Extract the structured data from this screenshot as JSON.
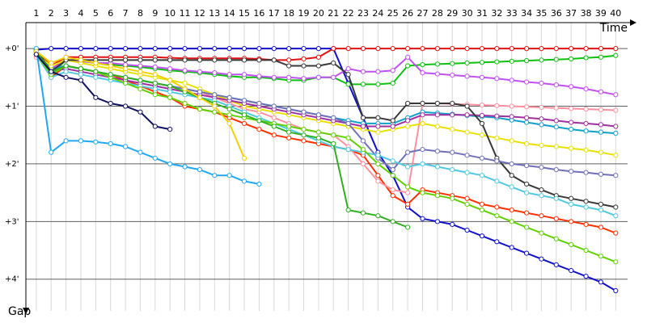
{
  "chart_data": {
    "type": "line",
    "x_label": "Time",
    "y_label": "Gap",
    "x": [
      1,
      2,
      3,
      4,
      5,
      6,
      7,
      8,
      9,
      10,
      11,
      12,
      13,
      14,
      15,
      16,
      17,
      18,
      19,
      20,
      21,
      22,
      23,
      24,
      25,
      26,
      27,
      28,
      29,
      30,
      31,
      32,
      33,
      34,
      35,
      36,
      37,
      38,
      39,
      40
    ],
    "xlim": [
      0.3,
      40.8
    ],
    "ylim": [
      -0.45,
      4.55
    ],
    "y_inverted": true,
    "yticks": [
      {
        "value": 0,
        "label": "+0'"
      },
      {
        "value": 1,
        "label": "+1'"
      },
      {
        "value": 2,
        "label": "+2'"
      },
      {
        "value": 3,
        "label": "+3'"
      },
      {
        "value": 4,
        "label": "+4'"
      }
    ],
    "grid": true,
    "series": [
      {
        "color": "#1010c8",
        "values": [
          0.02,
          0,
          0,
          0,
          0,
          0,
          0,
          0,
          0,
          0,
          0,
          0,
          0,
          0,
          0,
          0,
          0,
          0,
          0,
          0,
          0,
          0.6,
          1.2,
          1.8,
          2.2,
          2.75,
          2.95,
          3.0,
          3.05,
          3.15,
          3.25,
          3.35,
          3.45,
          3.55,
          3.65,
          3.75,
          3.85,
          3.95,
          4.05,
          4.2
        ]
      },
      {
        "color": "#e01010",
        "values": [
          0.05,
          0.3,
          0.15,
          0.15,
          0.15,
          0.15,
          0.15,
          0.15,
          0.15,
          0.16,
          0.17,
          0.17,
          0.17,
          0.17,
          0.17,
          0.18,
          0.2,
          0.2,
          0.18,
          0.15,
          0,
          0,
          0,
          0,
          0,
          0,
          0,
          0,
          0,
          0,
          0,
          0,
          0,
          0,
          0,
          0,
          0,
          0,
          0,
          0
        ]
      },
      {
        "color": "#10c010",
        "values": [
          0.05,
          0.45,
          0.2,
          0.22,
          0.25,
          0.28,
          0.3,
          0.32,
          0.35,
          0.38,
          0.4,
          0.42,
          0.45,
          0.48,
          0.5,
          0.5,
          0.52,
          0.55,
          0.55,
          0.5,
          0.5,
          0.62,
          0.62,
          0.62,
          0.6,
          0.3,
          0.28,
          0.27,
          0.26,
          0.25,
          0.24,
          0.23,
          0.22,
          0.21,
          0.2,
          0.19,
          0.18,
          0.16,
          0.15,
          0.12
        ]
      },
      {
        "color": "#ff3000",
        "values": [
          0.1,
          0.5,
          0.3,
          0.35,
          0.4,
          0.45,
          0.55,
          0.65,
          0.75,
          0.85,
          1.0,
          1.05,
          1.1,
          1.2,
          1.3,
          1.4,
          1.5,
          1.55,
          1.6,
          1.65,
          1.7,
          1.75,
          1.85,
          2.2,
          2.55,
          2.7,
          2.45,
          2.5,
          2.55,
          2.6,
          2.7,
          2.75,
          2.8,
          2.85,
          2.9,
          2.95,
          3.0,
          3.05,
          3.1,
          3.2
        ]
      },
      {
        "color": "#c050f0",
        "values": [
          0.1,
          0.35,
          0.2,
          0.22,
          0.25,
          0.25,
          0.28,
          0.3,
          0.32,
          0.35,
          0.38,
          0.4,
          0.42,
          0.45,
          0.45,
          0.48,
          0.5,
          0.5,
          0.52,
          0.5,
          0.5,
          0.35,
          0.4,
          0.4,
          0.38,
          0.15,
          0.42,
          0.44,
          0.46,
          0.48,
          0.5,
          0.52,
          0.55,
          0.58,
          0.6,
          0.63,
          0.66,
          0.7,
          0.75,
          0.8
        ]
      },
      {
        "color": "#ff90a0",
        "values": [
          0.15,
          0.4,
          0.3,
          0.35,
          0.4,
          0.45,
          0.5,
          0.55,
          0.6,
          0.65,
          0.7,
          0.75,
          0.85,
          0.95,
          1.05,
          1.1,
          1.2,
          1.3,
          1.4,
          1.45,
          1.5,
          1.7,
          2.0,
          2.3,
          2.45,
          2.5,
          0.95,
          0.95,
          0.96,
          0.97,
          0.98,
          0.99,
          1.0,
          1.01,
          1.02,
          1.03,
          1.04,
          1.05,
          1.06,
          1.07
        ]
      },
      {
        "color": "#10a0c8",
        "values": [
          0.05,
          0.35,
          0.3,
          0.35,
          0.4,
          0.45,
          0.5,
          0.55,
          0.6,
          0.65,
          0.7,
          0.75,
          0.8,
          0.85,
          0.9,
          0.95,
          1.0,
          1.05,
          1.1,
          1.15,
          1.2,
          1.25,
          1.3,
          1.3,
          1.3,
          1.2,
          1.1,
          1.12,
          1.14,
          1.16,
          1.18,
          1.2,
          1.24,
          1.28,
          1.32,
          1.36,
          1.4,
          1.43,
          1.45,
          1.47
        ]
      },
      {
        "color": "#e8e000",
        "values": [
          0.1,
          0.3,
          0.2,
          0.25,
          0.3,
          0.35,
          0.4,
          0.45,
          0.5,
          0.55,
          0.6,
          0.7,
          0.8,
          0.9,
          1.0,
          1.05,
          1.1,
          1.15,
          1.2,
          1.25,
          1.3,
          1.35,
          1.4,
          1.45,
          1.4,
          1.35,
          1.3,
          1.35,
          1.4,
          1.45,
          1.5,
          1.55,
          1.6,
          1.65,
          1.68,
          1.7,
          1.73,
          1.76,
          1.8,
          1.85
        ]
      },
      {
        "color": "#a030a0",
        "values": [
          0.1,
          0.4,
          0.35,
          0.4,
          0.45,
          0.5,
          0.55,
          0.6,
          0.65,
          0.7,
          0.75,
          0.8,
          0.85,
          0.9,
          0.95,
          1.0,
          1.05,
          1.1,
          1.15,
          1.2,
          1.25,
          1.3,
          1.35,
          1.35,
          1.35,
          1.25,
          1.15,
          1.15,
          1.15,
          1.15,
          1.16,
          1.17,
          1.18,
          1.2,
          1.22,
          1.25,
          1.28,
          1.3,
          1.32,
          1.35
        ]
      },
      {
        "color": "#383838",
        "values": [
          0.02,
          0.4,
          0.2,
          0.2,
          0.2,
          0.2,
          0.2,
          0.2,
          0.2,
          0.2,
          0.2,
          0.2,
          0.2,
          0.2,
          0.2,
          0.2,
          0.2,
          0.3,
          0.3,
          0.3,
          0.25,
          0.45,
          1.2,
          1.2,
          1.25,
          0.95,
          0.95,
          0.95,
          0.95,
          1.0,
          1.3,
          1.9,
          2.2,
          2.35,
          2.45,
          2.55,
          2.6,
          2.65,
          2.7,
          2.75
        ]
      },
      {
        "color": "#7070b8",
        "values": [
          0.1,
          0.45,
          0.3,
          0.35,
          0.4,
          0.45,
          0.5,
          0.55,
          0.6,
          0.65,
          0.7,
          0.75,
          0.8,
          0.85,
          0.9,
          0.95,
          1.0,
          1.05,
          1.1,
          1.15,
          1.2,
          1.3,
          1.6,
          1.9,
          2.1,
          1.8,
          1.75,
          1.78,
          1.8,
          1.85,
          1.9,
          1.95,
          2.0,
          2.03,
          2.06,
          2.1,
          2.13,
          2.15,
          2.18,
          2.2
        ]
      },
      {
        "color": "#50c8e0",
        "values": [
          0.1,
          0.5,
          0.4,
          0.45,
          0.5,
          0.55,
          0.6,
          0.65,
          0.7,
          0.75,
          0.8,
          0.85,
          0.9,
          1.0,
          1.1,
          1.2,
          1.3,
          1.4,
          1.5,
          1.6,
          1.7,
          1.75,
          1.8,
          1.85,
          1.95,
          2.05,
          2.0,
          2.05,
          2.1,
          2.15,
          2.2,
          2.3,
          2.4,
          2.5,
          2.55,
          2.6,
          2.7,
          2.75,
          2.8,
          2.9
        ]
      },
      {
        "color": "#60d000",
        "values": [
          0.1,
          0.45,
          0.3,
          0.35,
          0.4,
          0.5,
          0.6,
          0.7,
          0.8,
          0.85,
          0.95,
          1.05,
          1.1,
          1.15,
          1.2,
          1.25,
          1.3,
          1.35,
          1.4,
          1.45,
          1.5,
          1.55,
          1.75,
          2.0,
          2.2,
          2.4,
          2.5,
          2.55,
          2.6,
          2.7,
          2.8,
          2.9,
          3.0,
          3.1,
          3.2,
          3.3,
          3.4,
          3.5,
          3.6,
          3.7
        ]
      },
      {
        "color": "#30b020",
        "values": [
          0.05,
          0.4,
          0.3,
          0.35,
          0.4,
          0.45,
          0.5,
          0.55,
          0.6,
          0.65,
          0.75,
          0.85,
          0.95,
          1.05,
          1.15,
          1.25,
          1.35,
          1.45,
          1.5,
          1.55,
          1.65,
          2.8,
          2.85,
          2.9,
          3.0,
          3.1,
          null,
          null,
          null,
          null,
          null,
          null,
          null,
          null,
          null,
          null,
          null,
          null,
          null,
          null
        ]
      },
      {
        "color": "#20a8f0",
        "values": [
          0.0,
          1.8,
          1.6,
          1.6,
          1.62,
          1.65,
          1.7,
          1.8,
          1.9,
          2.0,
          2.05,
          2.1,
          2.2,
          2.2,
          2.3,
          2.35,
          null,
          null,
          null,
          null,
          null,
          null,
          null,
          null,
          null,
          null,
          null,
          null,
          null,
          null,
          null,
          null,
          null,
          null,
          null,
          null,
          null,
          null,
          null,
          null
        ]
      },
      {
        "color": "#f0d000",
        "values": [
          0.05,
          0.25,
          0.15,
          0.2,
          0.25,
          0.3,
          0.35,
          0.4,
          0.45,
          0.55,
          0.7,
          0.85,
          1.0,
          1.3,
          1.9,
          null,
          null,
          null,
          null,
          null,
          null,
          null,
          null,
          null,
          null,
          null,
          null,
          null,
          null,
          null,
          null,
          null,
          null,
          null,
          null,
          null,
          null,
          null,
          null,
          null
        ]
      },
      {
        "color": "#101060",
        "values": [
          0.1,
          0.4,
          0.5,
          0.55,
          0.85,
          0.95,
          1.0,
          1.1,
          1.35,
          1.4,
          null,
          null,
          null,
          null,
          null,
          null,
          null,
          null,
          null,
          null,
          null,
          null,
          null,
          null,
          null,
          null,
          null,
          null,
          null,
          null,
          null,
          null,
          null,
          null,
          null,
          null,
          null,
          null,
          null,
          null
        ]
      }
    ]
  }
}
